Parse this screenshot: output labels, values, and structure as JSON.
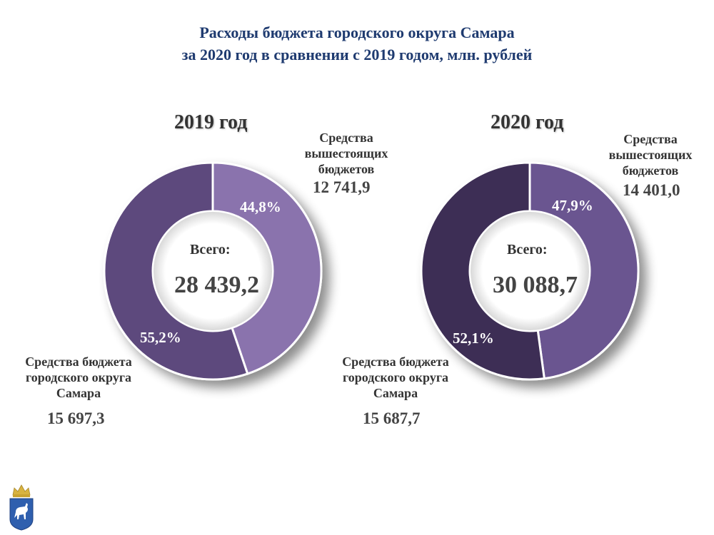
{
  "title_line1": "Расходы бюджета городского округа Самара",
  "title_line2": "за 2020 год в сравнении с 2019 годом, млн. рублей",
  "chart_data": [
    {
      "type": "pie",
      "title": "2019 год",
      "center_label": "Всего:",
      "total": "28 439,2",
      "slices": [
        {
          "label_lines": [
            "Средства",
            "вышестоящих",
            "бюджетов"
          ],
          "value": 12741.9,
          "value_text": "12 741,9",
          "percent_text": "44,8%",
          "color": "#8a73ad"
        },
        {
          "label_lines": [
            "Средства бюджета",
            "городского округа",
            "Самара"
          ],
          "value": 15697.3,
          "value_text": "15 697,3",
          "percent_text": "55,2%",
          "color": "#5d4a7d"
        }
      ]
    },
    {
      "type": "pie",
      "title": "2020 год",
      "center_label": "Всего:",
      "total": "30 088,7",
      "slices": [
        {
          "label_lines": [
            "Средства",
            "вышестоящих",
            "бюджетов"
          ],
          "value": 14401.0,
          "value_text": "14 401,0",
          "percent_text": "47,9%",
          "color": "#6b5590"
        },
        {
          "label_lines": [
            "Средства бюджета",
            "городского округа",
            "Самара"
          ],
          "value": 15687.7,
          "value_text": "15 687,7",
          "percent_text": "52,1%",
          "color": "#3d2e55"
        }
      ]
    }
  ],
  "emblem": {
    "name": "samara-emblem",
    "colors": {
      "shield": "#2f5fae",
      "crown": "#d8b340",
      "goat": "#ffffff"
    }
  }
}
